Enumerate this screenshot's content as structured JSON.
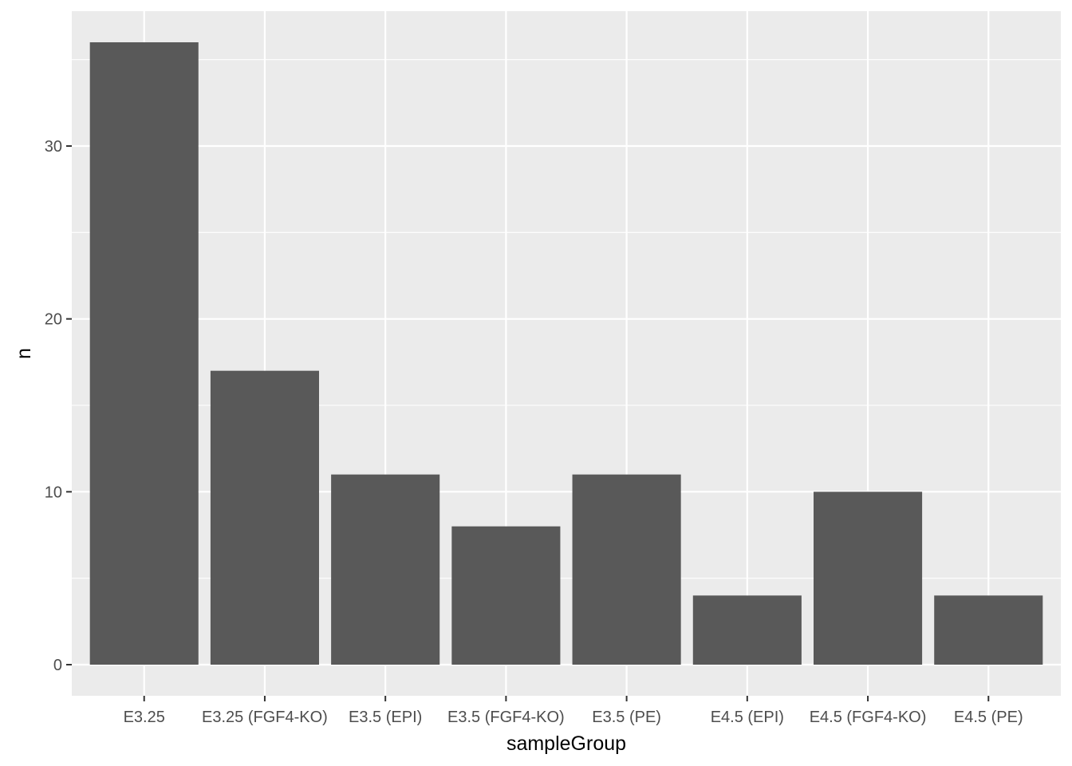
{
  "chart_data": {
    "type": "bar",
    "xlabel": "sampleGroup",
    "ylabel": "n",
    "categories": [
      "E3.25",
      "E3.25 (FGF4-KO)",
      "E3.5 (EPI)",
      "E3.5 (FGF4-KO)",
      "E3.5 (PE)",
      "E4.5 (EPI)",
      "E4.5 (FGF4-KO)",
      "E4.5 (PE)"
    ],
    "values": [
      36,
      17,
      11,
      8,
      11,
      4,
      10,
      4
    ],
    "ylim": [
      -1.8,
      37.8
    ],
    "yticks": [
      0,
      10,
      20,
      30
    ],
    "grid": true,
    "colors": {
      "panel": "#ebebeb",
      "grid": "#ffffff",
      "bar": "#595959",
      "tick": "#333333"
    }
  }
}
